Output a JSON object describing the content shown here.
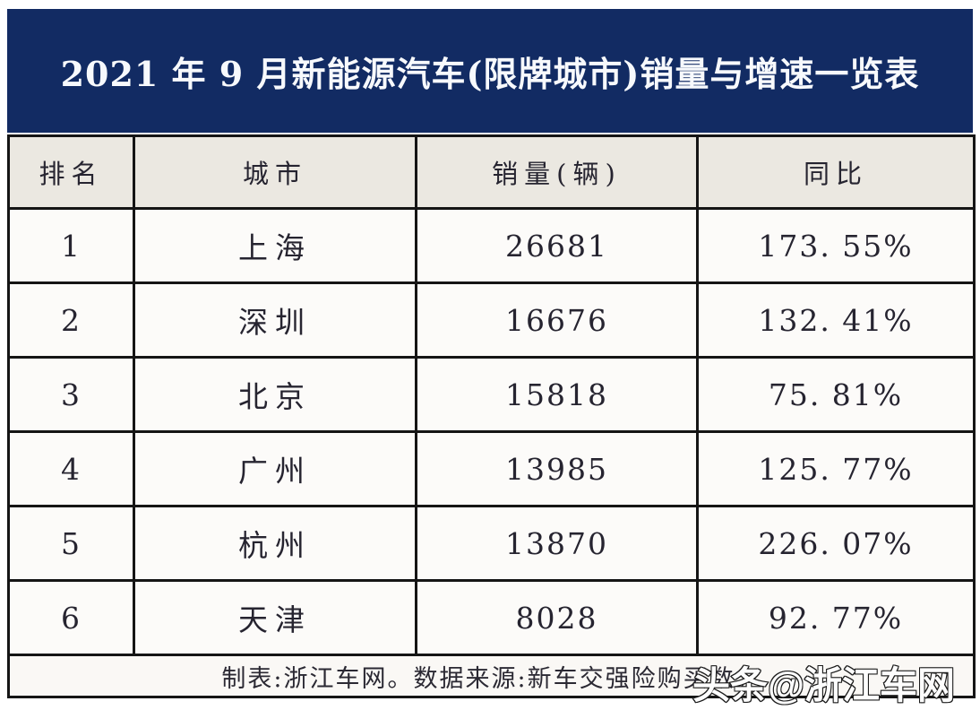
{
  "title_bar": {
    "text": "2021 年 9 月新能源汽车(限牌城市)销量与增速一览表",
    "background": "#122b63",
    "text_color": "#f7f9fc"
  },
  "table": {
    "columns": [
      "排名",
      "城市",
      "销量(辆)",
      "同比"
    ],
    "rows": [
      {
        "rank": "1",
        "city": "上海",
        "sales": "26681",
        "yoy": "173. 55%"
      },
      {
        "rank": "2",
        "city": "深圳",
        "sales": "16676",
        "yoy": "132. 41%"
      },
      {
        "rank": "3",
        "city": "北京",
        "sales": "15818",
        "yoy": "75. 81%"
      },
      {
        "rank": "4",
        "city": "广州",
        "sales": "13985",
        "yoy": "125. 77%"
      },
      {
        "rank": "5",
        "city": "杭州",
        "sales": "13870",
        "yoy": "226. 07%"
      },
      {
        "rank": "6",
        "city": "天津",
        "sales": "8028",
        "yoy": "92. 77%"
      }
    ],
    "header_background": "#ebe8e1",
    "row_background": "#fcfbf9",
    "border_color": "#151515"
  },
  "footer": {
    "note": "制表:浙江车网。数据来源:新车交强险购买数。"
  },
  "watermark": {
    "text": "头条@浙江车网"
  },
  "chart_data": {
    "type": "table",
    "title": "2021 年 9 月新能源汽车(限牌城市)销量与增速一览表",
    "columns": [
      "排名",
      "城市",
      "销量(辆)",
      "同比"
    ],
    "rows": [
      [
        1,
        "上海",
        26681,
        "173.55%"
      ],
      [
        2,
        "深圳",
        16676,
        "132.41%"
      ],
      [
        3,
        "北京",
        15818,
        "75.81%"
      ],
      [
        4,
        "广州",
        13985,
        "125.77%"
      ],
      [
        5,
        "杭州",
        13870,
        "226.07%"
      ],
      [
        6,
        "天津",
        8028,
        "92.77%"
      ]
    ],
    "note": "制表:浙江车网。数据来源:新车交强险购买数。"
  }
}
